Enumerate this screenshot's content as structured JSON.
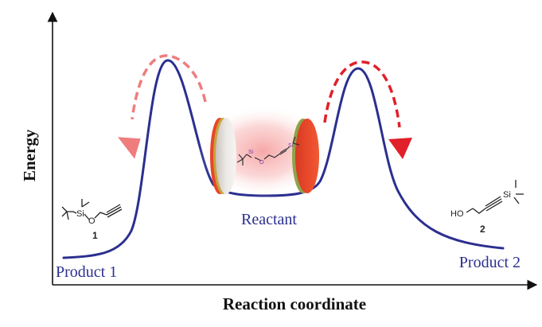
{
  "axes": {
    "y_label": "Energy",
    "x_label": "Reaction coordinate"
  },
  "labels": {
    "reactant": "Reactant",
    "product1": "Product 1",
    "product2": "Product 2"
  },
  "molecules": {
    "compound1": {
      "number": "1",
      "atoms": [
        "Si",
        "O"
      ]
    },
    "compound2": {
      "number": "2",
      "atoms": [
        "HO",
        "Si"
      ]
    },
    "center": {
      "atoms": [
        "Si",
        "O",
        "Si"
      ]
    }
  },
  "colors": {
    "curve": "#2b2f8f",
    "arrow_left": "#ef7d7d",
    "arrow_right": "#e0202a",
    "glow": "#f48a8a",
    "disk_red": "#e8452a",
    "disk_grey": "#d9d5d2",
    "axis": "#111111"
  }
}
